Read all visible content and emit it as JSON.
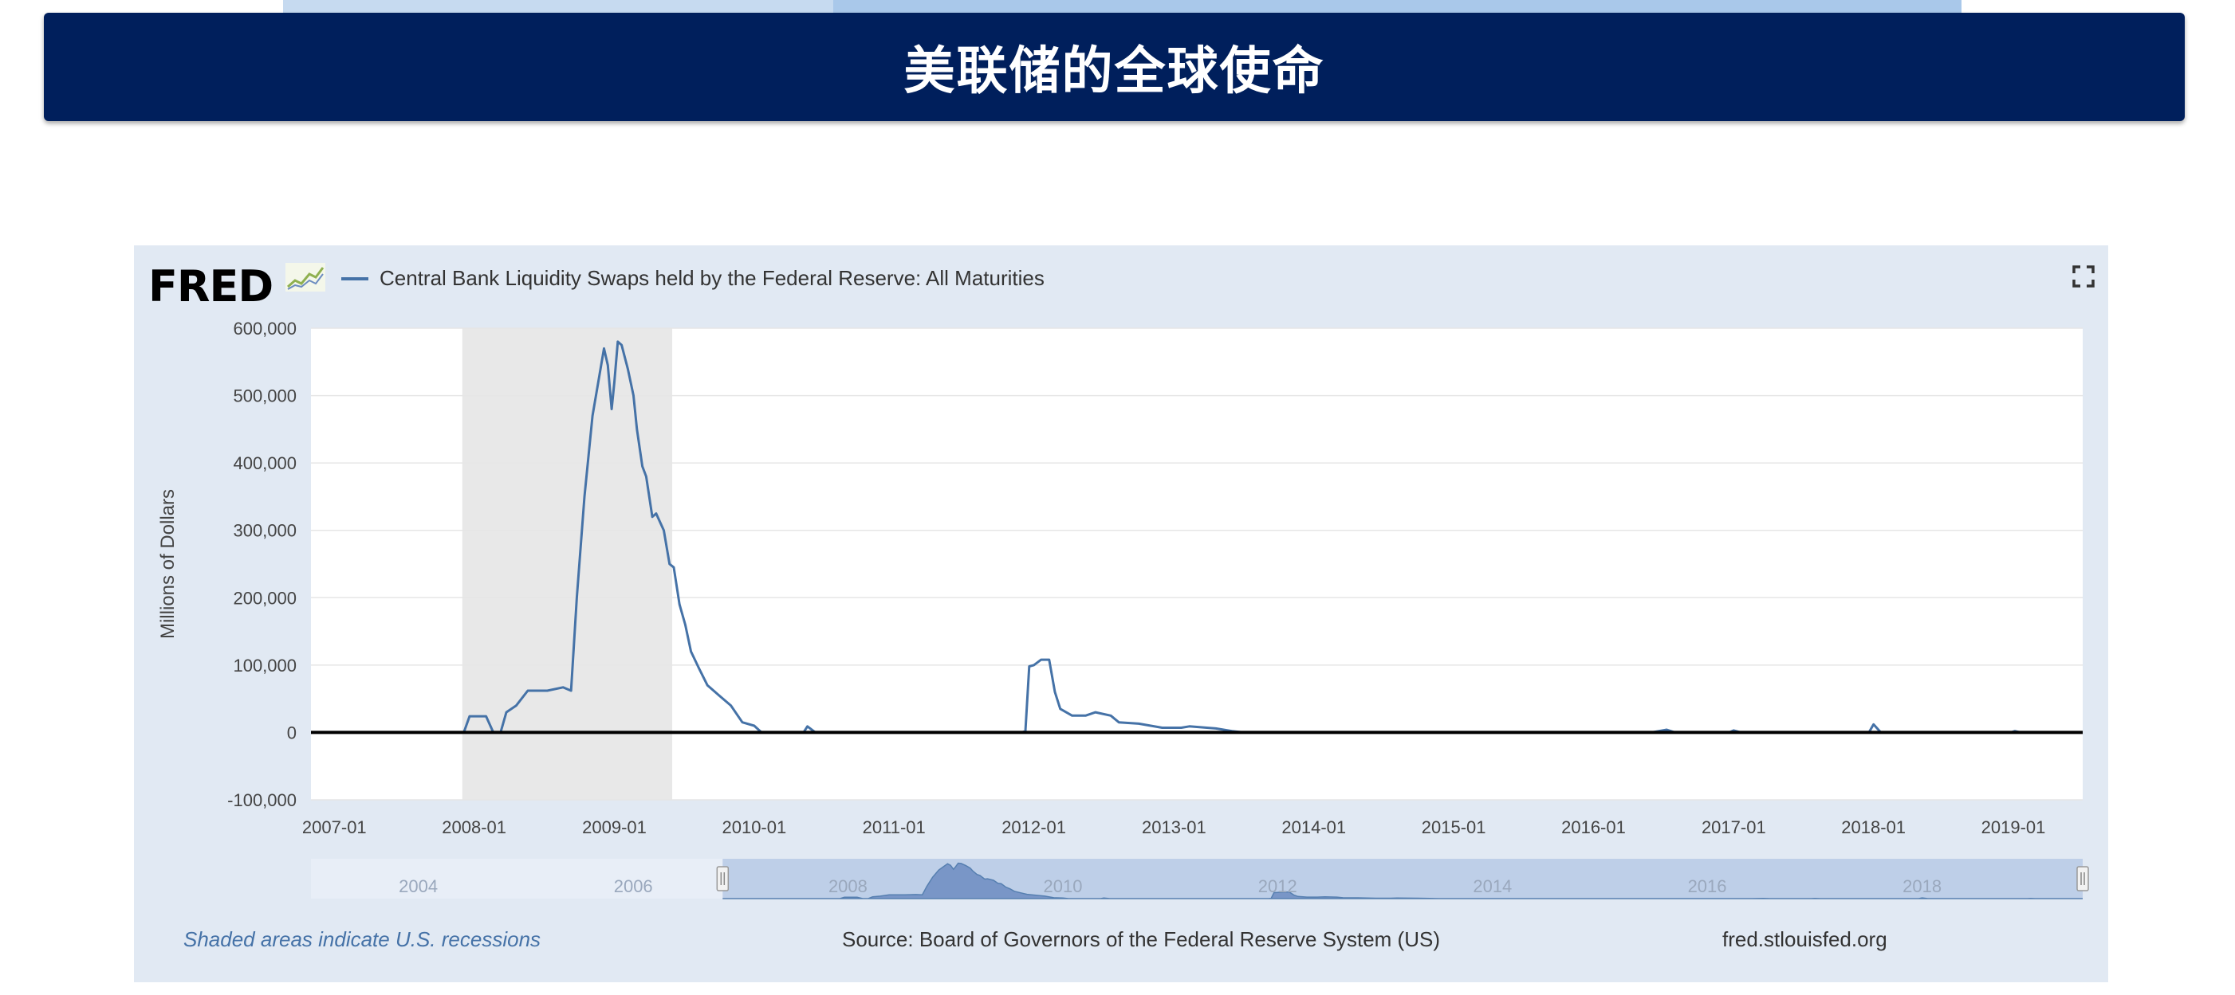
{
  "slide": {
    "title": "美联储的全球使命"
  },
  "fred": {
    "logo": "FRED",
    "expand_icon": "fullscreen-icon",
    "footer_left": "Shaded areas indicate U.S. recessions",
    "footer_source": "Source: Board of Governors of the Federal Reserve System (US)",
    "footer_url": "fred.stlouisfed.org",
    "navigator_years": [
      "2004",
      "2006",
      "2008",
      "2010",
      "2012",
      "2014",
      "2016",
      "2018"
    ],
    "colors": {
      "series": "#4572a7",
      "recession": "#e8e8e8",
      "panel": "#e1e9f3"
    }
  },
  "chart_data": {
    "type": "line",
    "title": "",
    "xlabel": "",
    "ylabel": "Millions of Dollars",
    "ylim": [
      -100000,
      600000
    ],
    "xlim": [
      "2006-11-01",
      "2019-07-01"
    ],
    "y_ticks": [
      600000,
      500000,
      400000,
      300000,
      200000,
      100000,
      0,
      -100000
    ],
    "y_tick_labels": [
      "600,000",
      "500,000",
      "400,000",
      "300,000",
      "200,000",
      "100,000",
      "0",
      "-100,000"
    ],
    "x_ticks": [
      "2007-01-01",
      "2008-01-01",
      "2009-01-01",
      "2010-01-01",
      "2011-01-01",
      "2012-01-01",
      "2013-01-01",
      "2014-01-01",
      "2015-01-01",
      "2016-01-01",
      "2017-01-01",
      "2018-01-01",
      "2019-01-01"
    ],
    "x_tick_labels": [
      "2007-01",
      "2008-01",
      "2009-01",
      "2010-01",
      "2011-01",
      "2012-01",
      "2013-01",
      "2014-01",
      "2015-01",
      "2016-01",
      "2017-01",
      "2018-01",
      "2019-01"
    ],
    "recessions": [
      {
        "start": "2007-12-01",
        "end": "2009-06-01"
      }
    ],
    "grid": true,
    "legend": "top-left",
    "series": [
      {
        "name": "Central Bank Liquidity Swaps held by the Federal Reserve: All Maturities",
        "points": [
          [
            "2006-11-01",
            0
          ],
          [
            "2007-12-05",
            0
          ],
          [
            "2007-12-20",
            24000
          ],
          [
            "2008-02-01",
            24000
          ],
          [
            "2008-02-20",
            0
          ],
          [
            "2008-03-10",
            0
          ],
          [
            "2008-03-25",
            30000
          ],
          [
            "2008-04-20",
            40000
          ],
          [
            "2008-05-20",
            62000
          ],
          [
            "2008-07-10",
            62000
          ],
          [
            "2008-08-20",
            67000
          ],
          [
            "2008-09-10",
            62000
          ],
          [
            "2008-09-25",
            200000
          ],
          [
            "2008-10-15",
            350000
          ],
          [
            "2008-11-05",
            470000
          ],
          [
            "2008-11-20",
            520000
          ],
          [
            "2008-12-05",
            570000
          ],
          [
            "2008-12-15",
            545000
          ],
          [
            "2008-12-25",
            480000
          ],
          [
            "2009-01-01",
            520000
          ],
          [
            "2009-01-10",
            580000
          ],
          [
            "2009-01-20",
            575000
          ],
          [
            "2009-02-05",
            540000
          ],
          [
            "2009-02-20",
            500000
          ],
          [
            "2009-03-01",
            450000
          ],
          [
            "2009-03-15",
            395000
          ],
          [
            "2009-03-25",
            380000
          ],
          [
            "2009-04-10",
            320000
          ],
          [
            "2009-04-20",
            325000
          ],
          [
            "2009-05-10",
            300000
          ],
          [
            "2009-05-25",
            250000
          ],
          [
            "2009-06-05",
            245000
          ],
          [
            "2009-06-20",
            190000
          ],
          [
            "2009-07-05",
            160000
          ],
          [
            "2009-07-20",
            120000
          ],
          [
            "2009-08-10",
            95000
          ],
          [
            "2009-09-01",
            70000
          ],
          [
            "2009-10-01",
            55000
          ],
          [
            "2009-11-01",
            40000
          ],
          [
            "2009-12-01",
            15000
          ],
          [
            "2010-01-01",
            10000
          ],
          [
            "2010-01-20",
            0
          ],
          [
            "2010-05-10",
            0
          ],
          [
            "2010-05-20",
            9000
          ],
          [
            "2010-06-10",
            0
          ],
          [
            "2011-12-01",
            0
          ],
          [
            "2011-12-10",
            2000
          ],
          [
            "2011-12-20",
            98000
          ],
          [
            "2012-01-01",
            100000
          ],
          [
            "2012-01-20",
            108000
          ],
          [
            "2012-02-10",
            108000
          ],
          [
            "2012-02-25",
            60000
          ],
          [
            "2012-03-10",
            35000
          ],
          [
            "2012-04-10",
            25000
          ],
          [
            "2012-05-15",
            25000
          ],
          [
            "2012-06-10",
            30000
          ],
          [
            "2012-07-20",
            25000
          ],
          [
            "2012-08-10",
            15000
          ],
          [
            "2012-10-01",
            13000
          ],
          [
            "2012-12-01",
            7000
          ],
          [
            "2013-01-20",
            7000
          ],
          [
            "2013-02-10",
            9000
          ],
          [
            "2013-04-20",
            6000
          ],
          [
            "2013-06-01",
            2000
          ],
          [
            "2013-07-01",
            0
          ],
          [
            "2016-06-01",
            0
          ],
          [
            "2016-07-10",
            4000
          ],
          [
            "2016-08-01",
            0
          ],
          [
            "2016-12-20",
            0
          ],
          [
            "2017-01-01",
            3000
          ],
          [
            "2017-01-20",
            0
          ],
          [
            "2017-12-20",
            0
          ],
          [
            "2018-01-01",
            12000
          ],
          [
            "2018-01-20",
            0
          ],
          [
            "2018-12-25",
            0
          ],
          [
            "2019-01-05",
            2000
          ],
          [
            "2019-01-20",
            0
          ],
          [
            "2019-07-01",
            0
          ]
        ]
      }
    ],
    "navigator": {
      "xlim": [
        "2003-01-01",
        "2019-07-01"
      ],
      "selected": [
        "2006-11-01",
        "2019-07-01"
      ]
    }
  }
}
